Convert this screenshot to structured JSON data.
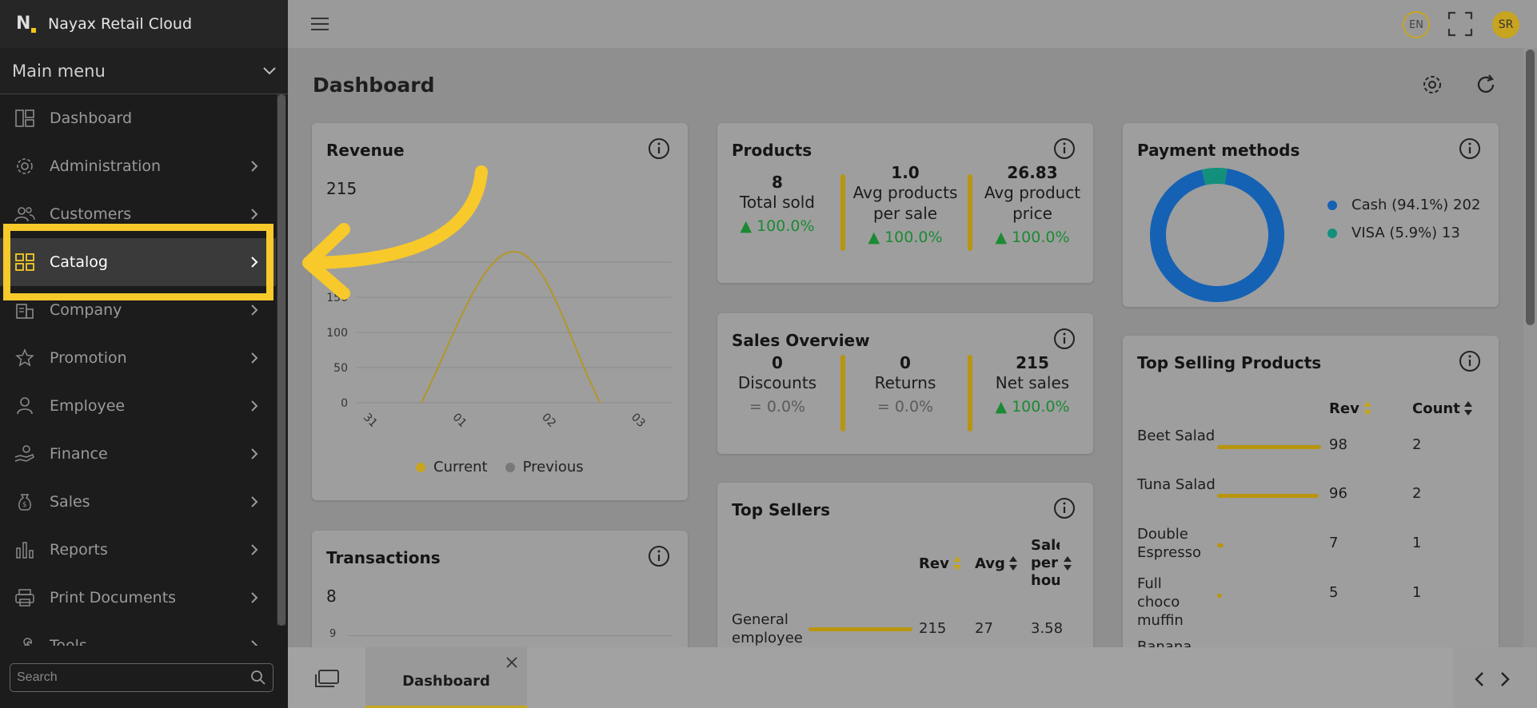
{
  "brand": {
    "name": "Nayax Retail Cloud",
    "logo_letter": "N"
  },
  "sidebar": {
    "section_title": "Main menu",
    "items": [
      {
        "label": "Dashboard",
        "icon": "dashboard-icon",
        "has_chevron": false
      },
      {
        "label": "Administration",
        "icon": "gear-icon",
        "has_chevron": true
      },
      {
        "label": "Customers",
        "icon": "people-icon",
        "has_chevron": true
      },
      {
        "label": "Catalog",
        "icon": "grid-icon",
        "has_chevron": true,
        "active": true
      },
      {
        "label": "Company",
        "icon": "building-icon",
        "has_chevron": true
      },
      {
        "label": "Promotion",
        "icon": "star-icon",
        "has_chevron": true
      },
      {
        "label": "Employee",
        "icon": "person-icon",
        "has_chevron": true
      },
      {
        "label": "Finance",
        "icon": "hand-coin-icon",
        "has_chevron": true
      },
      {
        "label": "Sales",
        "icon": "money-bag-icon",
        "has_chevron": true
      },
      {
        "label": "Reports",
        "icon": "bar-chart-icon",
        "has_chevron": true
      },
      {
        "label": "Print Documents",
        "icon": "printer-icon",
        "has_chevron": true
      },
      {
        "label": "Tools",
        "icon": "wrench-icon",
        "has_chevron": true
      }
    ],
    "search_placeholder": "Search"
  },
  "topbar": {
    "language": "EN",
    "avatar_initials": "SR"
  },
  "page": {
    "title": "Dashboard"
  },
  "revenue": {
    "title": "Revenue",
    "total": "215",
    "legend": [
      "Current",
      "Previous"
    ],
    "chart_data": {
      "type": "line",
      "x": [
        "31",
        "01",
        "02",
        "03"
      ],
      "series": [
        {
          "name": "Current",
          "values": [
            0,
            0,
            215,
            0
          ]
        },
        {
          "name": "Previous",
          "values": [
            0,
            0,
            0,
            0
          ]
        }
      ],
      "y_ticks": [
        "0",
        "50",
        "100",
        "150",
        "200"
      ],
      "ylim": [
        0,
        250
      ],
      "grid": true,
      "legend_position": "bottom"
    }
  },
  "products": {
    "title": "Products",
    "stats": [
      {
        "value": "8",
        "label": "Total sold",
        "change": "100.0%",
        "trend": "up"
      },
      {
        "value": "1.0",
        "label": "Avg products per sale",
        "change": "100.0%",
        "trend": "up"
      },
      {
        "value": "26.83",
        "label": "Avg product price",
        "change": "100.0%",
        "trend": "up"
      }
    ]
  },
  "sales_overview": {
    "title": "Sales Overview",
    "stats": [
      {
        "value": "0",
        "label": "Discounts",
        "change": "0.0%",
        "trend": "flat"
      },
      {
        "value": "0",
        "label": "Returns",
        "change": "0.0%",
        "trend": "flat"
      },
      {
        "value": "215",
        "label": "Net sales",
        "change": "100.0%",
        "trend": "up"
      }
    ]
  },
  "top_sellers": {
    "title": "Top Sellers",
    "columns": [
      "Rev",
      "Avg",
      "Sale per hou"
    ],
    "rows": [
      {
        "name": "General employee",
        "rev": "215",
        "avg": "27",
        "per_hour": "3.58",
        "bar_fraction": 1.0
      }
    ]
  },
  "payment_methods": {
    "title": "Payment methods",
    "chart_data": {
      "type": "pie",
      "donut": true,
      "slices": [
        {
          "label": "Cash (94.1%) 202",
          "value": 202,
          "color": "#1562b4"
        },
        {
          "label": "VISA (5.9%) 13",
          "value": 13,
          "color": "#13907c"
        }
      ]
    }
  },
  "top_selling_products": {
    "title": "Top Selling Products",
    "columns": [
      "Rev",
      "Count"
    ],
    "rows": [
      {
        "name": "Beet Salad",
        "rev": "98",
        "count": "2",
        "bar_fraction": 1.0
      },
      {
        "name": "Tuna Salad",
        "rev": "96",
        "count": "2",
        "bar_fraction": 0.98
      },
      {
        "name": "Double Espresso",
        "rev": "7",
        "count": "1",
        "bar_fraction": 0.07
      },
      {
        "name": "Full choco muffin",
        "rev": "5",
        "count": "1",
        "bar_fraction": 0.05
      },
      {
        "name": "Banana",
        "rev": "",
        "count": "",
        "bar_fraction": 0
      }
    ]
  },
  "transactions": {
    "title": "Transactions",
    "total": "8",
    "chart_data": {
      "type": "line",
      "y_ticks": [
        "9"
      ]
    }
  },
  "bottom_tabs": {
    "tabs": [
      {
        "label": "Dashboard"
      }
    ]
  },
  "colors": {
    "accent": "#f7c92a",
    "accent_dim": "#b8950f",
    "positive": "#1b8a33",
    "sidebar_bg": "#1c1c1c"
  }
}
